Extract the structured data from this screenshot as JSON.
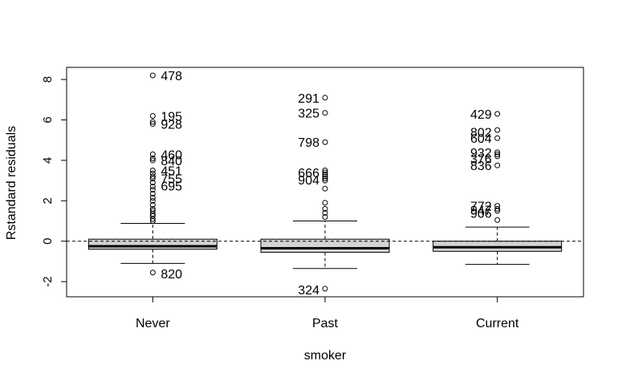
{
  "chart_data": {
    "type": "boxplot",
    "xlabel": "smoker",
    "ylabel": "Rstandard residuals",
    "categories": [
      "Never",
      "Past",
      "Current"
    ],
    "ylim": [
      -2.75,
      8.6
    ],
    "yticks": [
      -2,
      0,
      2,
      4,
      6,
      8
    ],
    "ytick_labels": [
      "-2",
      "0",
      "2",
      "4",
      "6",
      "8"
    ],
    "reference_line": 0,
    "boxes": [
      {
        "category": "Never",
        "whisker_low": -1.1,
        "q1": -0.4,
        "median": -0.25,
        "q3": 0.1,
        "whisker_high": 0.88,
        "outliers": [
          8.2,
          6.2,
          5.9,
          5.8,
          4.3,
          4.1,
          4.0,
          3.5,
          3.35,
          3.2,
          3.1,
          2.9,
          2.7,
          2.55,
          2.35,
          2.15,
          2.0,
          1.8,
          1.6,
          1.5,
          1.35,
          1.25,
          1.1,
          1.0,
          -1.55
        ],
        "labeled_outliers": [
          {
            "label": "478",
            "value": 8.2
          },
          {
            "label": "195",
            "value": 6.2
          },
          {
            "label": "928",
            "value": 5.8
          },
          {
            "label": "460",
            "value": 4.3
          },
          {
            "label": "840",
            "value": 4.0
          },
          {
            "label": "451",
            "value": 3.5
          },
          {
            "label": "755",
            "value": 3.1
          },
          {
            "label": "695",
            "value": 2.75
          },
          {
            "label": "820",
            "value": -1.6
          }
        ]
      },
      {
        "category": "Past",
        "whisker_low": -1.35,
        "q1": -0.55,
        "median": -0.35,
        "q3": 0.1,
        "whisker_high": 1.0,
        "outliers": [
          7.1,
          6.35,
          4.9,
          3.5,
          3.4,
          3.3,
          3.2,
          3.1,
          3.0,
          2.6,
          1.9,
          1.6,
          1.4,
          1.2,
          -2.35
        ],
        "labeled_outliers": [
          {
            "label": "291",
            "value": 7.1
          },
          {
            "label": "325",
            "value": 6.35
          },
          {
            "label": "798",
            "value": 4.9
          },
          {
            "label": "666",
            "value": 3.4
          },
          {
            "label": "904",
            "value": 3.05
          },
          {
            "label": "324",
            "value": -2.4
          }
        ]
      },
      {
        "category": "Current",
        "whisker_low": -1.15,
        "q1": -0.5,
        "median": -0.3,
        "q3": 0.0,
        "whisker_high": 0.7,
        "outliers": [
          6.3,
          5.5,
          5.1,
          4.4,
          4.3,
          4.2,
          3.75,
          1.75,
          1.6,
          1.5,
          1.05
        ],
        "labeled_outliers": [
          {
            "label": "429",
            "value": 6.3
          },
          {
            "label": "802",
            "value": 5.4
          },
          {
            "label": "604",
            "value": 5.1
          },
          {
            "label": "932",
            "value": 4.4
          },
          {
            "label": "376",
            "value": 4.1
          },
          {
            "label": "836",
            "value": 3.75
          },
          {
            "label": "772",
            "value": 1.75
          },
          {
            "label": "947",
            "value": 1.55
          },
          {
            "label": "906",
            "value": 1.4
          }
        ]
      }
    ],
    "colors": {
      "box_fill": "#d3d3d3",
      "stroke": "#000000",
      "background": "#ffffff"
    }
  }
}
